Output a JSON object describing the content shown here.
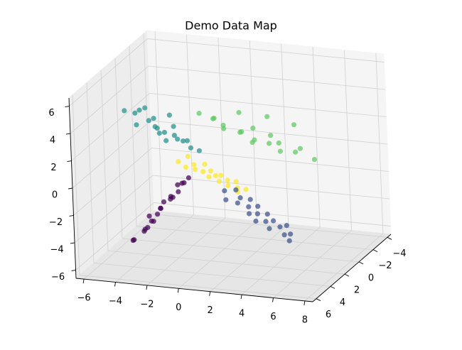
{
  "chart_data": {
    "type": "scatter3d",
    "title": "Demo Data Map",
    "xlim": [
      -6.5,
      8.5
    ],
    "ylim": [
      -4.5,
      6.5
    ],
    "zlim": [
      -6.6,
      6.6
    ],
    "xticks": [
      {
        "value": -6,
        "label": "−6"
      },
      {
        "value": -4,
        "label": "−4"
      },
      {
        "value": -2,
        "label": "−2"
      },
      0,
      2,
      4,
      6,
      8
    ],
    "yticks": [
      {
        "value": -4,
        "label": "−4"
      },
      {
        "value": -2,
        "label": "−2"
      },
      0,
      2,
      4,
      6
    ],
    "zticks": [
      {
        "value": -6,
        "label": "−6"
      },
      {
        "value": -4,
        "label": "−4"
      },
      {
        "value": -2,
        "label": "−2"
      },
      0,
      2,
      4,
      6
    ],
    "grid": true,
    "series": [
      {
        "color": "#21918c",
        "x": [
          -6.8,
          -6.5,
          -6.2,
          -6.0,
          -5.7,
          -5.5,
          -5.3,
          -5.0,
          -4.9,
          -4.7,
          -4.5,
          -4.4,
          -4.2,
          -4.0,
          -3.8,
          -3.6,
          -3.3,
          -3.1,
          -2.8,
          -2.5
        ],
        "y": [
          -1.6,
          -2.4,
          -1.9,
          -2.7,
          -1.3,
          -2.1,
          -2.5,
          -1.7,
          -2.2,
          -1.5,
          -2.8,
          -2.0,
          -1.4,
          -2.3,
          -1.8,
          -2.6,
          -1.2,
          -2.1,
          -1.9,
          -2.4
        ],
        "z": [
          2.0,
          1.5,
          0.9,
          1.8,
          2.3,
          1.2,
          0.6,
          1.6,
          0.3,
          1.0,
          1.4,
          -0.1,
          0.8,
          0.2,
          1.1,
          -0.3,
          0.5,
          0.0,
          -0.4,
          -0.8
        ]
      },
      {
        "color": "#5ec962",
        "x": [
          -2.0,
          -1.6,
          -1.2,
          -0.8,
          -0.4,
          0.0,
          0.3,
          0.6,
          0.9,
          1.2,
          1.5,
          1.8,
          2.1,
          2.4,
          2.7,
          3.0,
          3.4,
          3.8,
          4.3,
          4.9
        ],
        "y": [
          -1.5,
          -2.5,
          -1.8,
          -2.2,
          -1.3,
          -2.7,
          -2.0,
          -1.6,
          -2.4,
          -1.9,
          -1.4,
          -2.6,
          -2.1,
          -1.7,
          -2.3,
          -1.5,
          -2.8,
          -2.0,
          -1.6,
          -2.2
        ],
        "z": [
          2.4,
          1.6,
          2.0,
          1.1,
          1.8,
          0.7,
          2.5,
          1.3,
          0.2,
          1.5,
          0.9,
          2.1,
          0.4,
          1.2,
          -0.2,
          0.8,
          1.6,
          0.0,
          0.5,
          -0.5
        ]
      },
      {
        "color": "#fde725",
        "x": [
          -2.6,
          -2.3,
          -2.0,
          -1.8,
          -1.5,
          -1.3,
          -1.1,
          -0.8,
          -0.6,
          -0.4,
          -0.2,
          0.0,
          0.3,
          0.5,
          0.7,
          1.0,
          1.2,
          1.4
        ],
        "y": [
          0.3,
          -0.4,
          0.6,
          -0.1,
          0.4,
          -0.5,
          0.2,
          -0.2,
          0.5,
          0.0,
          -0.3,
          0.4,
          -0.1,
          0.3,
          -0.4,
          0.1,
          0.5,
          -0.2
        ],
        "z": [
          -0.4,
          -0.3,
          -0.6,
          -0.7,
          -0.8,
          -0.8,
          -1.0,
          -1.1,
          -1.2,
          -1.3,
          -1.4,
          -1.5,
          -1.6,
          -1.8,
          -1.8,
          -2.0,
          -2.1,
          -2.2
        ]
      },
      {
        "color": "#3b528b",
        "x": [
          1.2,
          1.6,
          1.5,
          2.0,
          2.1,
          2.4,
          2.6,
          2.9,
          3.0,
          3.2,
          3.4,
          3.5,
          3.8,
          4.0,
          4.1,
          4.5,
          4.6,
          4.9,
          5.1,
          5.3
        ],
        "y": [
          2.3,
          1.6,
          2.8,
          1.9,
          2.5,
          1.4,
          2.1,
          2.7,
          1.7,
          2.2,
          2.9,
          1.5,
          2.4,
          1.8,
          2.6,
          2.0,
          1.3,
          2.3,
          1.9,
          2.5
        ],
        "z": [
          -1.2,
          -1.4,
          -1.6,
          -1.8,
          -1.9,
          -2.1,
          -2.3,
          -2.5,
          -2.4,
          -2.7,
          -2.9,
          -3.0,
          -3.1,
          -3.3,
          -3.5,
          -3.6,
          -3.8,
          -4.0,
          -4.1,
          -4.3
        ]
      },
      {
        "color": "#440154",
        "x": [
          -3.8,
          -3.4,
          -3.5,
          -3.1,
          -3.0,
          -2.7,
          -2.9,
          -2.4,
          -2.5,
          -2.1,
          -2.0,
          -1.7,
          -1.8,
          -1.4,
          -1.2,
          -1.3,
          -0.9,
          -0.7,
          -0.5,
          -0.3
        ],
        "y": [
          4.3,
          3.6,
          4.8,
          4.1,
          3.4,
          4.6,
          3.9,
          4.4,
          3.2,
          4.0,
          4.7,
          3.5,
          4.2,
          3.8,
          4.5,
          3.3,
          4.1,
          3.7,
          4.4,
          3.9
        ],
        "z": [
          -4.5,
          -4.1,
          -4.2,
          -3.7,
          -3.4,
          -3.3,
          -2.8,
          -2.9,
          -2.5,
          -2.1,
          -2.2,
          -1.6,
          -1.5,
          -1.3,
          -0.9,
          -0.6,
          -0.7,
          -0.2,
          0.1,
          0.3
        ]
      }
    ]
  }
}
